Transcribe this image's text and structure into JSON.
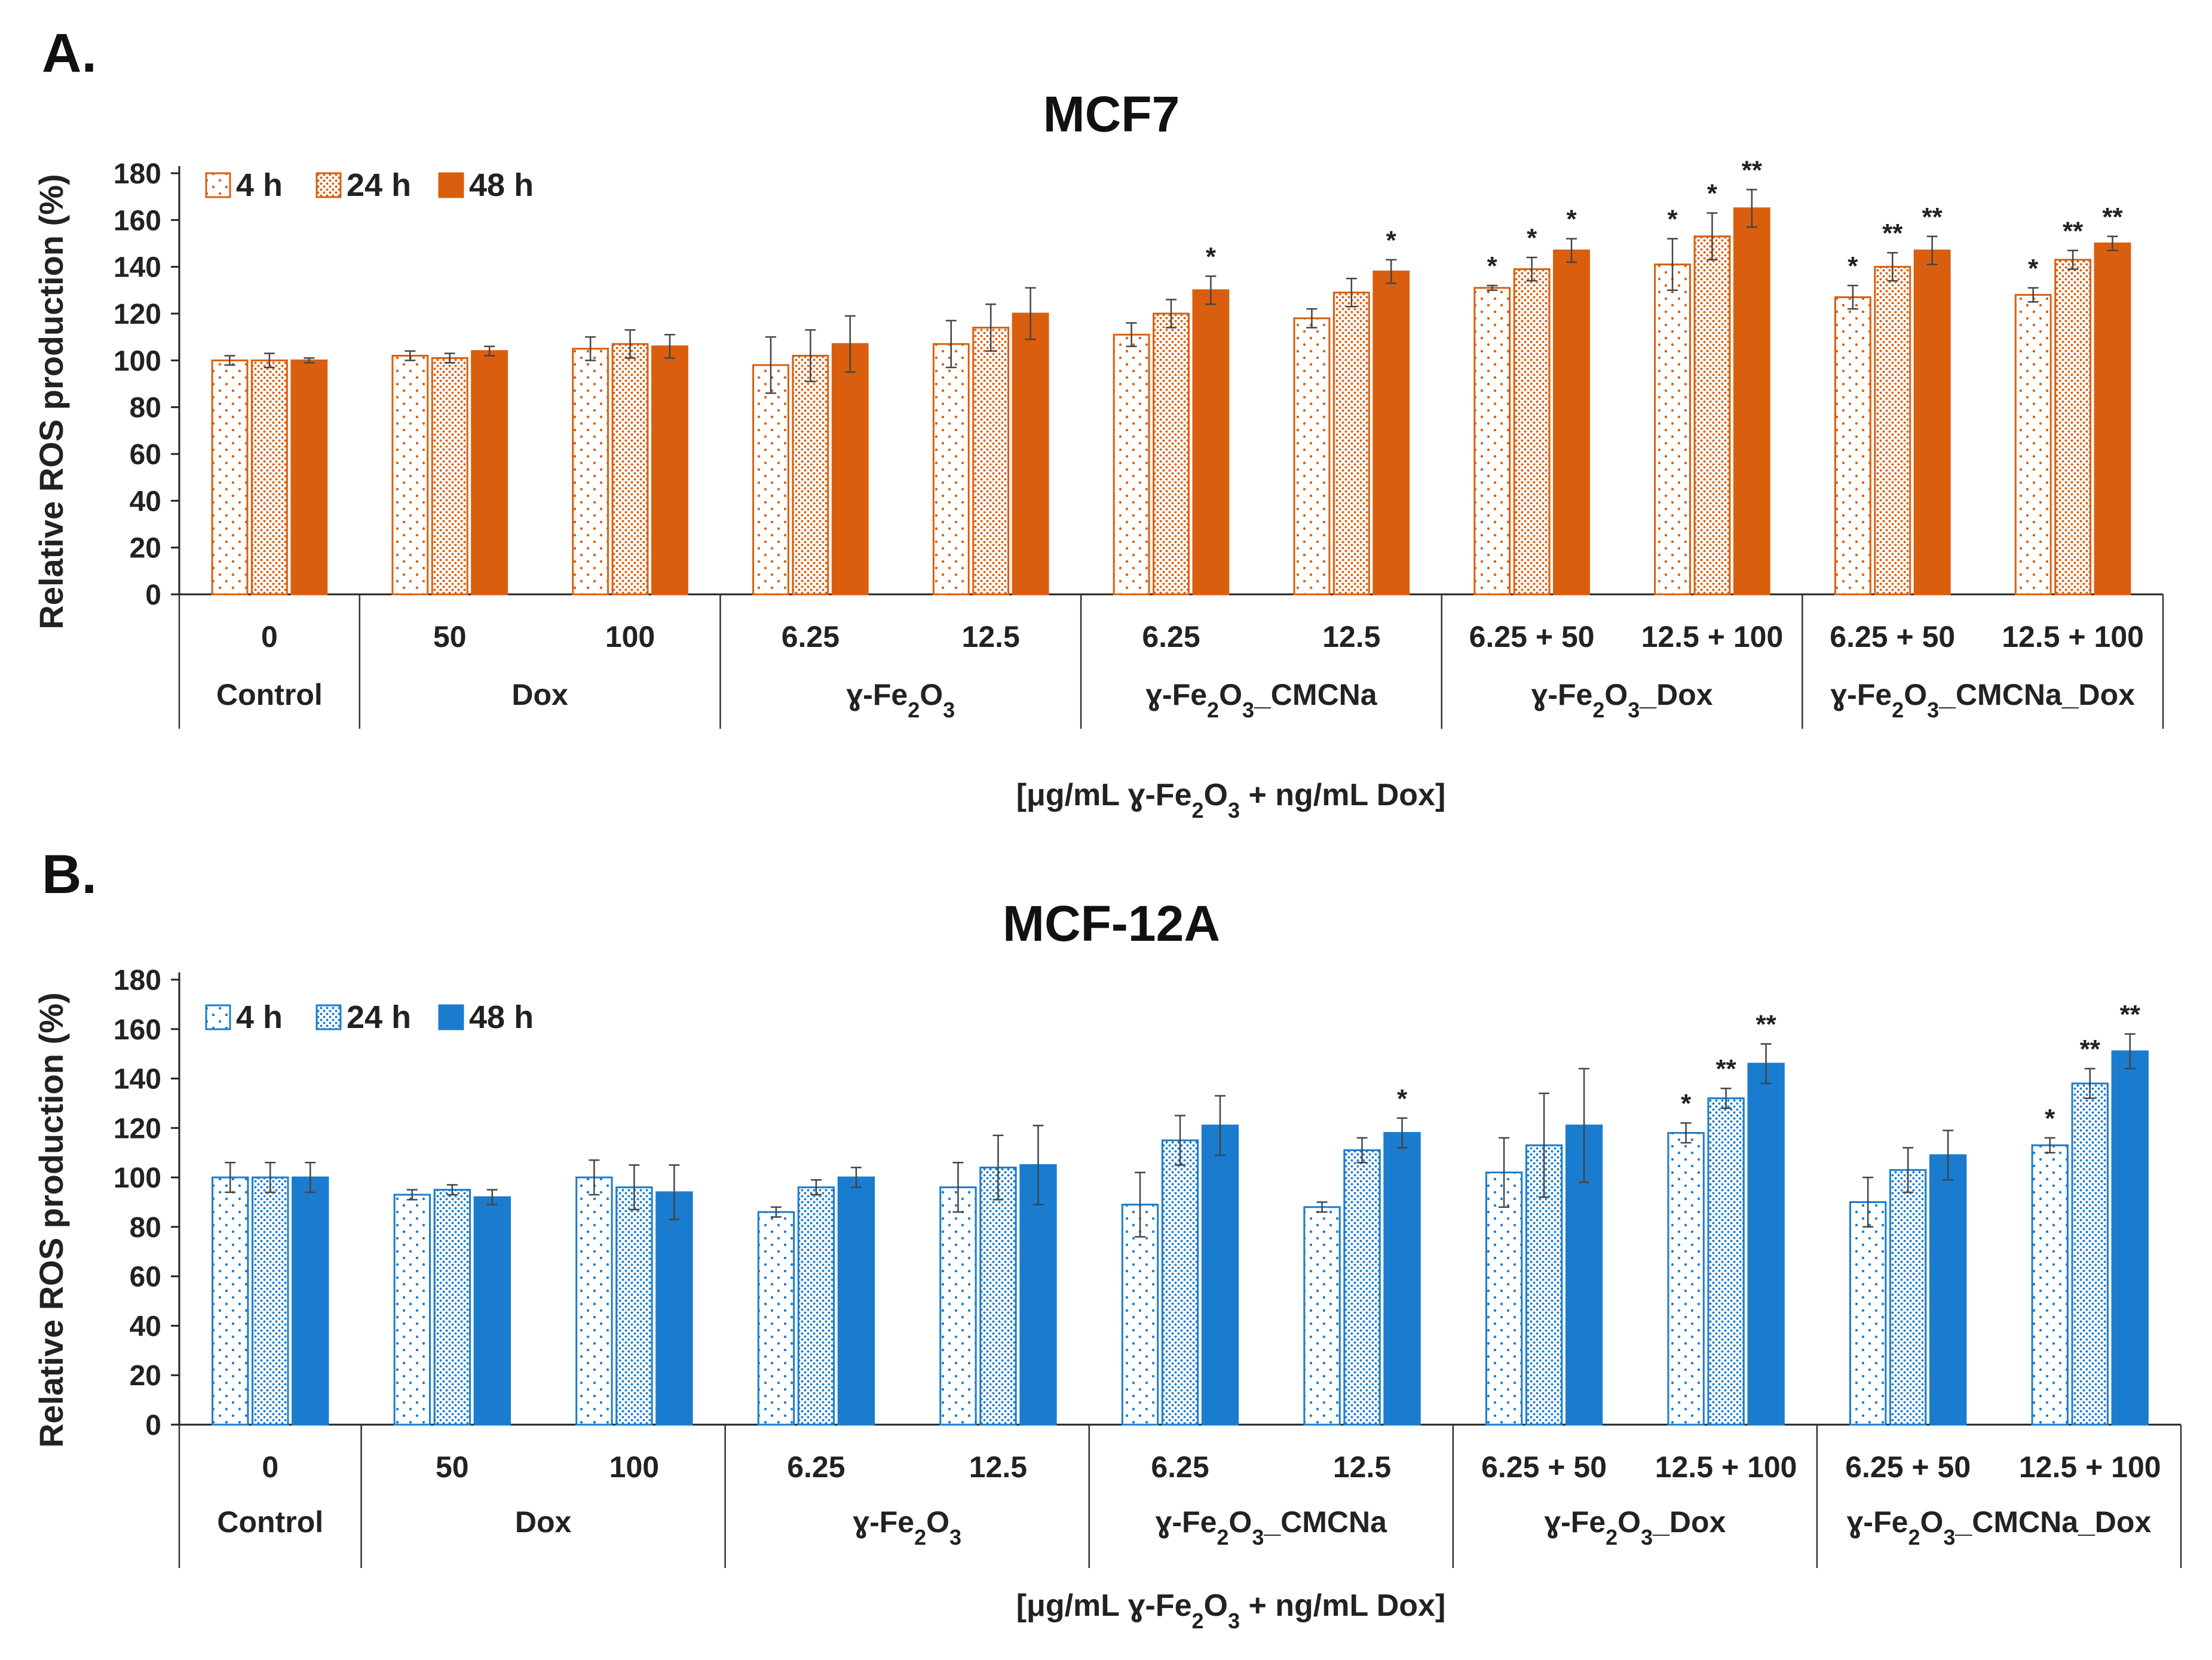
{
  "panels": [
    {
      "letter": "A."
    },
    {
      "letter": "B."
    }
  ],
  "chart_data": [
    {
      "type": "bar",
      "title": "MCF7",
      "ylabel": "Relative ROS production (%)",
      "xlabel_parts": [
        "[μg/mL ",
        "ɣ-Fe",
        "2",
        "O",
        "3",
        " + ng/mL Dox]"
      ],
      "ylim": [
        0,
        180
      ],
      "yticks": [
        "0",
        "20",
        "40",
        "60",
        "80",
        "100",
        "120",
        "140",
        "160",
        "180"
      ],
      "color": "#d95f0e",
      "series": [
        {
          "name": "4 h",
          "pattern": "dots-sparse",
          "values": [
            100,
            102,
            105,
            98,
            107,
            111,
            118,
            131,
            141,
            127,
            128
          ],
          "errors": [
            2,
            2,
            5,
            12,
            10,
            5,
            4,
            1,
            11,
            5,
            3
          ],
          "sig": [
            "",
            "",
            "",
            "",
            "",
            "",
            "",
            "*",
            "*",
            "*",
            "*"
          ]
        },
        {
          "name": "24 h",
          "pattern": "dots-dense",
          "values": [
            100,
            101,
            107,
            102,
            114,
            120,
            129,
            139,
            153,
            140,
            143
          ],
          "errors": [
            3,
            2,
            6,
            11,
            10,
            6,
            6,
            5,
            10,
            6,
            4
          ],
          "sig": [
            "",
            "",
            "",
            "",
            "",
            "",
            "",
            "*",
            "*",
            "**",
            "**"
          ]
        },
        {
          "name": "48 h",
          "pattern": "solid",
          "values": [
            100,
            104,
            106,
            107,
            120,
            130,
            138,
            147,
            165,
            147,
            150
          ],
          "errors": [
            1,
            2,
            5,
            12,
            11,
            6,
            5,
            5,
            8,
            6,
            3
          ],
          "sig": [
            "",
            "",
            "",
            "",
            "",
            "*",
            "*",
            "*",
            "**",
            "**",
            "**"
          ]
        }
      ],
      "categories": [
        "0",
        "50",
        "100",
        "6.25",
        "12.5",
        "6.25",
        "12.5",
        "6.25 + 50",
        "12.5 + 100",
        "6.25 + 50",
        "12.5 + 100"
      ],
      "groups": [
        {
          "name_parts": [
            "Control"
          ],
          "span": [
            0,
            0
          ]
        },
        {
          "name_parts": [
            "Dox"
          ],
          "span": [
            1,
            2
          ]
        },
        {
          "name_parts": [
            "ɣ-Fe",
            "2",
            "O",
            "3",
            ""
          ],
          "span": [
            3,
            4
          ]
        },
        {
          "name_parts": [
            "ɣ-Fe",
            "2",
            "O",
            "3",
            "_CMCNa"
          ],
          "span": [
            5,
            6
          ]
        },
        {
          "name_parts": [
            "ɣ-Fe",
            "2",
            "O",
            "3",
            "_Dox"
          ],
          "span": [
            7,
            8
          ]
        },
        {
          "name_parts": [
            "ɣ-Fe",
            "2",
            "O",
            "3",
            "_CMCNa_Dox"
          ],
          "span": [
            9,
            10
          ]
        }
      ]
    },
    {
      "type": "bar",
      "title": "MCF-12A",
      "ylabel": "Relative ROS production (%)",
      "xlabel_parts": [
        "[μg/mL ",
        "ɣ-Fe",
        "2",
        "O",
        "3",
        " + ng/mL Dox]"
      ],
      "ylim": [
        0,
        180
      ],
      "yticks": [
        "0",
        "20",
        "40",
        "60",
        "80",
        "100",
        "120",
        "140",
        "160",
        "180"
      ],
      "color": "#1a7ccf",
      "series": [
        {
          "name": "4 h",
          "pattern": "dots-sparse",
          "values": [
            100,
            93,
            100,
            86,
            96,
            89,
            88,
            102,
            118,
            90,
            113
          ],
          "errors": [
            6,
            2,
            7,
            2,
            10,
            13,
            2,
            14,
            4,
            10,
            3
          ],
          "sig": [
            "",
            "",
            "",
            "",
            "",
            "",
            "",
            "",
            "*",
            "",
            "*"
          ]
        },
        {
          "name": "24 h",
          "pattern": "dots-dense",
          "values": [
            100,
            95,
            96,
            96,
            104,
            115,
            111,
            113,
            132,
            103,
            138
          ],
          "errors": [
            6,
            2,
            9,
            3,
            13,
            10,
            5,
            21,
            4,
            9,
            6
          ],
          "sig": [
            "",
            "",
            "",
            "",
            "",
            "",
            "",
            "",
            "**",
            "",
            "**"
          ]
        },
        {
          "name": "48 h",
          "pattern": "solid",
          "values": [
            100,
            92,
            94,
            100,
            105,
            121,
            118,
            121,
            146,
            109,
            151
          ],
          "errors": [
            6,
            3,
            11,
            4,
            16,
            12,
            6,
            23,
            8,
            10,
            7
          ],
          "sig": [
            "",
            "",
            "",
            "",
            "",
            "",
            "*",
            "",
            "**",
            "",
            "**"
          ]
        }
      ],
      "categories": [
        "0",
        "50",
        "100",
        "6.25",
        "12.5",
        "6.25",
        "12.5",
        "6.25 + 50",
        "12.5 + 100",
        "6.25 + 50",
        "12.5 + 100"
      ],
      "groups": [
        {
          "name_parts": [
            "Control"
          ],
          "span": [
            0,
            0
          ]
        },
        {
          "name_parts": [
            "Dox"
          ],
          "span": [
            1,
            2
          ]
        },
        {
          "name_parts": [
            "ɣ-Fe",
            "2",
            "O",
            "3",
            ""
          ],
          "span": [
            3,
            4
          ]
        },
        {
          "name_parts": [
            "ɣ-Fe",
            "2",
            "O",
            "3",
            "_CMCNa"
          ],
          "span": [
            5,
            6
          ]
        },
        {
          "name_parts": [
            "ɣ-Fe",
            "2",
            "O",
            "3",
            "_Dox"
          ],
          "span": [
            7,
            8
          ]
        },
        {
          "name_parts": [
            "ɣ-Fe",
            "2",
            "O",
            "3",
            "_CMCNa_Dox"
          ],
          "span": [
            9,
            10
          ]
        }
      ]
    }
  ]
}
